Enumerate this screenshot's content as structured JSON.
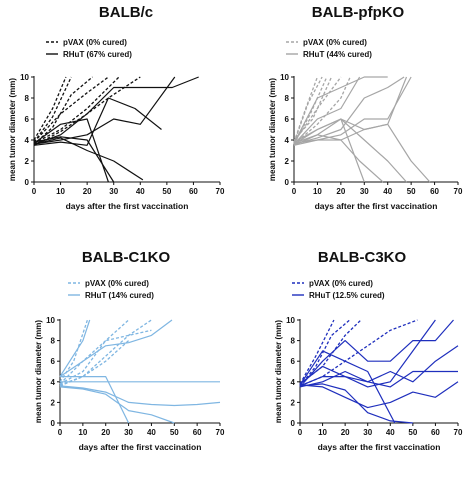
{
  "chart_data": [
    {
      "type": "line",
      "title": "BALB/c",
      "xlabel": "days after the first vaccination",
      "ylabel": "mean tumor diameter (mm)",
      "xlim": [
        0,
        70
      ],
      "ylim": [
        0,
        10
      ],
      "xticks": [
        0,
        10,
        20,
        30,
        40,
        50,
        60,
        70
      ],
      "yticks": [
        0,
        2,
        4,
        6,
        8,
        10
      ],
      "color": "#111111",
      "legend": [
        {
          "label": "pVAX (0% cured)",
          "style": "dashed"
        },
        {
          "label": "RHuT (67% cured)",
          "style": "solid"
        }
      ],
      "series": [
        {
          "group": "pVAX",
          "x": [
            0,
            7,
            14
          ],
          "y": [
            3.8,
            6.2,
            10
          ]
        },
        {
          "group": "pVAX",
          "x": [
            0,
            7,
            12
          ],
          "y": [
            4,
            7,
            10
          ]
        },
        {
          "group": "pVAX",
          "x": [
            0,
            7,
            14,
            22
          ],
          "y": [
            3.6,
            5.2,
            8.3,
            10
          ]
        },
        {
          "group": "pVAX",
          "x": [
            0,
            10,
            20,
            28
          ],
          "y": [
            3.8,
            6.5,
            8.5,
            10
          ]
        },
        {
          "group": "pVAX",
          "x": [
            0,
            10,
            20,
            32
          ],
          "y": [
            3.7,
            5,
            7,
            10
          ]
        },
        {
          "group": "pVAX",
          "x": [
            0,
            10,
            20,
            28,
            40
          ],
          "y": [
            3.5,
            4.8,
            6.5,
            8,
            10
          ]
        },
        {
          "group": "RHuT",
          "x": [
            0,
            10,
            20,
            28
          ],
          "y": [
            3.7,
            5.5,
            6,
            0
          ]
        },
        {
          "group": "RHuT",
          "x": [
            0,
            10,
            20,
            30
          ],
          "y": [
            3.8,
            4.3,
            4,
            0
          ]
        },
        {
          "group": "RHuT",
          "x": [
            0,
            10,
            20,
            30,
            41
          ],
          "y": [
            3.6,
            4.2,
            3,
            2,
            0.2
          ]
        },
        {
          "group": "RHuT",
          "x": [
            0,
            10,
            20,
            28,
            38,
            48
          ],
          "y": [
            3.5,
            3.8,
            3.5,
            8,
            7,
            5
          ]
        },
        {
          "group": "RHuT",
          "x": [
            0,
            10,
            20,
            30,
            40,
            52,
            62
          ],
          "y": [
            3.6,
            4.5,
            6.5,
            9,
            9,
            9,
            10
          ]
        },
        {
          "group": "RHuT",
          "x": [
            0,
            10,
            20,
            30,
            40,
            53
          ],
          "y": [
            3.6,
            4,
            4.5,
            6,
            5.5,
            10
          ]
        }
      ]
    },
    {
      "type": "line",
      "title": "BALB-pfpKO",
      "xlabel": "days after the first vaccination",
      "ylabel": "mean tumor diameter (mm)",
      "xlim": [
        0,
        70
      ],
      "ylim": [
        0,
        10
      ],
      "xticks": [
        0,
        10,
        20,
        30,
        40,
        50,
        60,
        70
      ],
      "yticks": [
        0,
        2,
        4,
        6,
        8,
        10
      ],
      "color": "#a6a6a6",
      "legend": [
        {
          "label": "pVAX (0% cured)",
          "style": "dashed"
        },
        {
          "label": "RHuT (44% cured)",
          "style": "solid"
        }
      ],
      "series": [
        {
          "group": "pVAX",
          "x": [
            0,
            5,
            10
          ],
          "y": [
            3.8,
            7,
            10
          ]
        },
        {
          "group": "pVAX",
          "x": [
            0,
            6,
            12
          ],
          "y": [
            3.7,
            7.5,
            10
          ]
        },
        {
          "group": "pVAX",
          "x": [
            0,
            7,
            14
          ],
          "y": [
            3.6,
            6.5,
            10
          ]
        },
        {
          "group": "pVAX",
          "x": [
            0,
            8,
            16
          ],
          "y": [
            4,
            6,
            10
          ]
        },
        {
          "group": "pVAX",
          "x": [
            0,
            10,
            20
          ],
          "y": [
            3.8,
            7,
            10
          ]
        },
        {
          "group": "pVAX",
          "x": [
            0,
            10,
            20,
            24
          ],
          "y": [
            3.6,
            5.5,
            8,
            10
          ]
        },
        {
          "group": "RHuT",
          "x": [
            0,
            10,
            20,
            30,
            40
          ],
          "y": [
            3.7,
            8,
            9,
            10,
            10
          ]
        },
        {
          "group": "RHuT",
          "x": [
            0,
            10,
            20,
            28
          ],
          "y": [
            3.6,
            6,
            7,
            10
          ]
        },
        {
          "group": "RHuT",
          "x": [
            0,
            10,
            20,
            30
          ],
          "y": [
            3.8,
            5,
            6,
            0
          ]
        },
        {
          "group": "RHuT",
          "x": [
            0,
            10,
            20,
            28,
            38
          ],
          "y": [
            3.5,
            4.5,
            4,
            2,
            0
          ]
        },
        {
          "group": "RHuT",
          "x": [
            0,
            10,
            20,
            30,
            40,
            48
          ],
          "y": [
            3.6,
            5,
            6,
            4,
            2,
            0
          ]
        },
        {
          "group": "RHuT",
          "x": [
            0,
            10,
            20,
            30,
            40,
            50
          ],
          "y": [
            3.7,
            4,
            4.5,
            6,
            6,
            10
          ]
        },
        {
          "group": "RHuT",
          "x": [
            0,
            10,
            20,
            30,
            40,
            50,
            58
          ],
          "y": [
            3.5,
            4,
            4,
            5,
            5.5,
            2,
            0
          ]
        },
        {
          "group": "RHuT",
          "x": [
            0,
            10,
            20,
            30,
            40,
            47
          ],
          "y": [
            3.6,
            4.2,
            5,
            8,
            9,
            10
          ]
        },
        {
          "group": "RHuT",
          "x": [
            0,
            10,
            20,
            30,
            40,
            48
          ],
          "y": [
            3.7,
            4.5,
            6,
            5,
            5.5,
            10
          ]
        }
      ]
    },
    {
      "type": "line",
      "title": "BALB-C1KO",
      "xlabel": "days after the first vaccination",
      "ylabel": "mean tumor diameter (mm)",
      "xlim": [
        0,
        70
      ],
      "ylim": [
        0,
        10
      ],
      "xticks": [
        0,
        10,
        20,
        30,
        40,
        50,
        60,
        70
      ],
      "yticks": [
        0,
        2,
        4,
        6,
        8,
        10
      ],
      "color": "#7fb6e2",
      "legend": [
        {
          "label": "pVAX (0% cured)",
          "style": "dashed"
        },
        {
          "label": "RHuT (14% cured)",
          "style": "solid"
        }
      ],
      "series": [
        {
          "group": "pVAX",
          "x": [
            0,
            6,
            12
          ],
          "y": [
            4,
            6,
            10
          ]
        },
        {
          "group": "pVAX",
          "x": [
            0,
            10,
            20,
            30
          ],
          "y": [
            3.8,
            6,
            8,
            10
          ]
        },
        {
          "group": "pVAX",
          "x": [
            0,
            10,
            20,
            30
          ],
          "y": [
            3.6,
            4.5,
            6,
            8
          ]
        },
        {
          "group": "pVAX",
          "x": [
            0,
            10,
            20,
            30,
            40
          ],
          "y": [
            3.7,
            4.5,
            6.5,
            8.5,
            10
          ]
        },
        {
          "group": "pVAX",
          "x": [
            0,
            10,
            20,
            30,
            40
          ],
          "y": [
            3.8,
            5,
            8,
            8.5,
            9
          ]
        },
        {
          "group": "RHuT",
          "x": [
            0,
            10,
            13
          ],
          "y": [
            4.5,
            8,
            10
          ]
        },
        {
          "group": "RHuT",
          "x": [
            0,
            10,
            20,
            30,
            40,
            50,
            60,
            70
          ],
          "y": [
            4,
            4,
            4,
            4,
            4,
            4,
            4,
            4
          ]
        },
        {
          "group": "RHuT",
          "x": [
            0,
            10,
            20,
            30,
            40,
            50,
            60,
            70
          ],
          "y": [
            3.6,
            3.4,
            3,
            2,
            1.8,
            1.7,
            1.8,
            2
          ]
        },
        {
          "group": "RHuT",
          "x": [
            0,
            10,
            20,
            30,
            40,
            50
          ],
          "y": [
            3.5,
            3.3,
            2.8,
            1.2,
            0.8,
            0
          ]
        },
        {
          "group": "RHuT",
          "x": [
            0,
            10,
            20,
            30,
            40,
            49
          ],
          "y": [
            4.5,
            6,
            7.5,
            7.8,
            8.5,
            10
          ]
        },
        {
          "group": "RHuT",
          "x": [
            0,
            10,
            20,
            30
          ],
          "y": [
            4.5,
            4.5,
            4.5,
            0
          ]
        }
      ]
    },
    {
      "type": "line",
      "title": "BALB-C3KO",
      "xlabel": "days after the first vaccination",
      "ylabel": "mean tumor diameter (mm)",
      "xlim": [
        0,
        70
      ],
      "ylim": [
        0,
        10
      ],
      "xticks": [
        0,
        10,
        20,
        30,
        40,
        50,
        60,
        70
      ],
      "yticks": [
        0,
        2,
        4,
        6,
        8,
        10
      ],
      "color": "#1f2fbd",
      "legend": [
        {
          "label": "pVAX (0% cured)",
          "style": "dashed"
        },
        {
          "label": "RHuT (12.5% cured)",
          "style": "solid"
        }
      ],
      "series": [
        {
          "group": "pVAX",
          "x": [
            0,
            7,
            15
          ],
          "y": [
            3.8,
            6.5,
            10
          ]
        },
        {
          "group": "pVAX",
          "x": [
            0,
            7,
            14,
            22
          ],
          "y": [
            3.6,
            5.5,
            8.5,
            10
          ]
        },
        {
          "group": "pVAX",
          "x": [
            0,
            10,
            20,
            27
          ],
          "y": [
            3.8,
            5.5,
            8.5,
            10
          ]
        },
        {
          "group": "pVAX",
          "x": [
            0,
            10,
            20,
            30,
            40,
            52
          ],
          "y": [
            3.6,
            4.5,
            6,
            7.5,
            9,
            10
          ]
        },
        {
          "group": "RHuT",
          "x": [
            0,
            10,
            20,
            30,
            42
          ],
          "y": [
            3.7,
            7,
            6,
            5,
            0
          ]
        },
        {
          "group": "RHuT",
          "x": [
            0,
            10,
            20,
            30,
            40,
            50,
            60
          ],
          "y": [
            3.8,
            5.5,
            4.5,
            3.5,
            4,
            7,
            10
          ]
        },
        {
          "group": "RHuT",
          "x": [
            0,
            10,
            20,
            30,
            40,
            50,
            60,
            70
          ],
          "y": [
            3.5,
            4,
            5,
            4,
            5,
            4,
            6,
            7.5
          ]
        },
        {
          "group": "RHuT",
          "x": [
            0,
            10,
            20,
            30,
            40,
            50,
            60,
            70
          ],
          "y": [
            3.6,
            4.5,
            4.5,
            4,
            3.5,
            5,
            5,
            5
          ]
        },
        {
          "group": "RHuT",
          "x": [
            0,
            10,
            20,
            30,
            40,
            50,
            60,
            70
          ],
          "y": [
            3.7,
            3.5,
            2.5,
            1.5,
            2,
            3,
            2.5,
            4
          ]
        },
        {
          "group": "RHuT",
          "x": [
            0,
            10,
            20,
            30,
            40,
            50
          ],
          "y": [
            3.6,
            3.8,
            3.2,
            1,
            0.2,
            0
          ]
        },
        {
          "group": "RHuT",
          "x": [
            0,
            10,
            20,
            30,
            40,
            50,
            60,
            68
          ],
          "y": [
            3.5,
            6,
            8,
            6,
            6,
            8,
            8,
            10
          ]
        }
      ]
    }
  ]
}
